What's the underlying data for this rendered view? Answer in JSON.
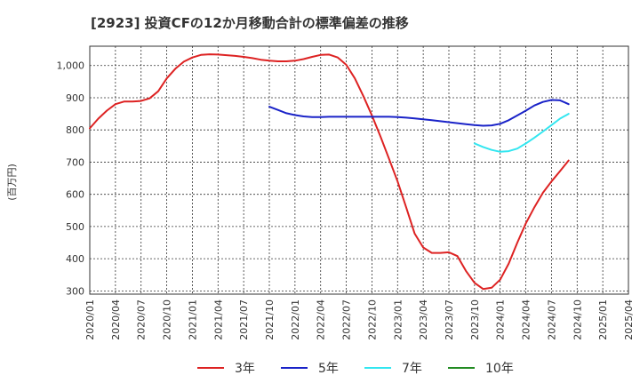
{
  "chart_data": {
    "type": "line",
    "title": "[2923]  投資CFの12か月移動合計の標準偏差の推移",
    "ylabel": "(百万円)",
    "xlabel": "",
    "ylim": [
      290,
      1060
    ],
    "y_ticks": [
      300,
      400,
      500,
      600,
      700,
      800,
      900,
      1000
    ],
    "y_tick_labels": [
      "300",
      "400",
      "500",
      "600",
      "700",
      "800",
      "900",
      "1,000"
    ],
    "x_tick_labels": [
      "2020/01",
      "2020/04",
      "2020/07",
      "2020/10",
      "2021/01",
      "2021/04",
      "2021/07",
      "2021/10",
      "2022/01",
      "2022/04",
      "2022/07",
      "2022/10",
      "2023/01",
      "2023/04",
      "2023/07",
      "2023/10",
      "2024/01",
      "2024/04",
      "2024/07",
      "2024/10",
      "2025/01",
      "2025/04"
    ],
    "grid": true,
    "legend_position": "bottom",
    "series": [
      {
        "name": "3年",
        "color": "#dd2222",
        "x": [
          "2020/01",
          "2020/02",
          "2020/03",
          "2020/04",
          "2020/05",
          "2020/06",
          "2020/07",
          "2020/08",
          "2020/09",
          "2020/10",
          "2020/11",
          "2020/12",
          "2021/01",
          "2021/02",
          "2021/03",
          "2021/04",
          "2021/05",
          "2021/06",
          "2021/07",
          "2021/08",
          "2021/09",
          "2021/10",
          "2021/11",
          "2021/12",
          "2022/01",
          "2022/02",
          "2022/03",
          "2022/04",
          "2022/05",
          "2022/06",
          "2022/07",
          "2022/08",
          "2022/09",
          "2022/10",
          "2022/11",
          "2022/12",
          "2023/01",
          "2023/02",
          "2023/03",
          "2023/04",
          "2023/05",
          "2023/06",
          "2023/07",
          "2023/08",
          "2023/09",
          "2023/10",
          "2023/11",
          "2023/12",
          "2024/01",
          "2024/02",
          "2024/03",
          "2024/04",
          "2024/05",
          "2024/06",
          "2024/07",
          "2024/08",
          "2024/09",
          "2024/10"
        ],
        "values": [
          805,
          835,
          860,
          880,
          888,
          888,
          890,
          898,
          920,
          960,
          990,
          1012,
          1025,
          1033,
          1035,
          1034,
          1032,
          1030,
          1027,
          1023,
          1018,
          1015,
          1013,
          1013,
          1015,
          1020,
          1027,
          1033,
          1034,
          1025,
          1002,
          960,
          905,
          845,
          780,
          710,
          640,
          560,
          478,
          435,
          418,
          418,
          420,
          408,
          362,
          325,
          306,
          310,
          335,
          385,
          450,
          510,
          560,
          605,
          640,
          672,
          705,
          null
        ]
      },
      {
        "name": "5年",
        "color": "#1a23c8",
        "x": [
          "2021/10",
          "2021/11",
          "2021/12",
          "2022/01",
          "2022/02",
          "2022/03",
          "2022/04",
          "2022/05",
          "2022/06",
          "2022/07",
          "2022/08",
          "2022/09",
          "2022/10",
          "2022/11",
          "2022/12",
          "2023/01",
          "2023/02",
          "2023/03",
          "2023/04",
          "2023/05",
          "2023/06",
          "2023/07",
          "2023/08",
          "2023/09",
          "2023/10",
          "2023/11",
          "2023/12",
          "2024/01",
          "2024/02",
          "2024/03",
          "2024/04",
          "2024/05",
          "2024/06",
          "2024/07",
          "2024/08",
          "2024/09",
          "2024/10"
        ],
        "values": [
          872,
          862,
          852,
          846,
          842,
          840,
          840,
          841,
          841,
          841,
          841,
          841,
          841,
          841,
          841,
          840,
          838,
          836,
          833,
          830,
          827,
          824,
          821,
          818,
          815,
          813,
          814,
          819,
          830,
          845,
          860,
          876,
          887,
          893,
          892,
          880,
          null
        ]
      },
      {
        "name": "7年",
        "color": "#33e6f0",
        "x": [
          "2023/10",
          "2023/11",
          "2023/12",
          "2024/01",
          "2024/02",
          "2024/03",
          "2024/04",
          "2024/05",
          "2024/06",
          "2024/07",
          "2024/08",
          "2024/09",
          "2024/10"
        ],
        "values": [
          758,
          747,
          738,
          732,
          734,
          742,
          758,
          776,
          795,
          815,
          835,
          850,
          null
        ]
      },
      {
        "name": "10年",
        "color": "#228b22",
        "x": [],
        "values": []
      }
    ]
  }
}
